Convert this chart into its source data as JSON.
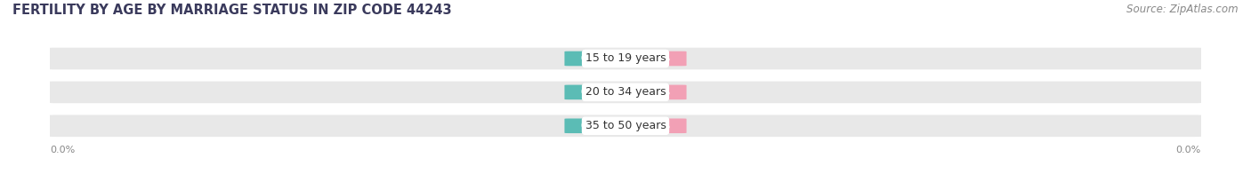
{
  "title": "FERTILITY BY AGE BY MARRIAGE STATUS IN ZIP CODE 44243",
  "source": "Source: ZipAtlas.com",
  "categories": [
    "15 to 19 years",
    "20 to 34 years",
    "35 to 50 years"
  ],
  "married_values": [
    0.0,
    0.0,
    0.0
  ],
  "unmarried_values": [
    0.0,
    0.0,
    0.0
  ],
  "married_color": "#5BBCB5",
  "unmarried_color": "#F2A0B5",
  "bar_bg_color": "#E8E8E8",
  "title_fontsize": 10.5,
  "source_fontsize": 8.5,
  "label_fontsize": 8,
  "category_fontsize": 9,
  "value_fontsize": 7.5,
  "background_color": "#FFFFFF",
  "title_color": "#3A3A5C",
  "source_color": "#888888",
  "category_color": "#333333",
  "value_color": "#FFFFFF",
  "axis_label_color": "#888888"
}
